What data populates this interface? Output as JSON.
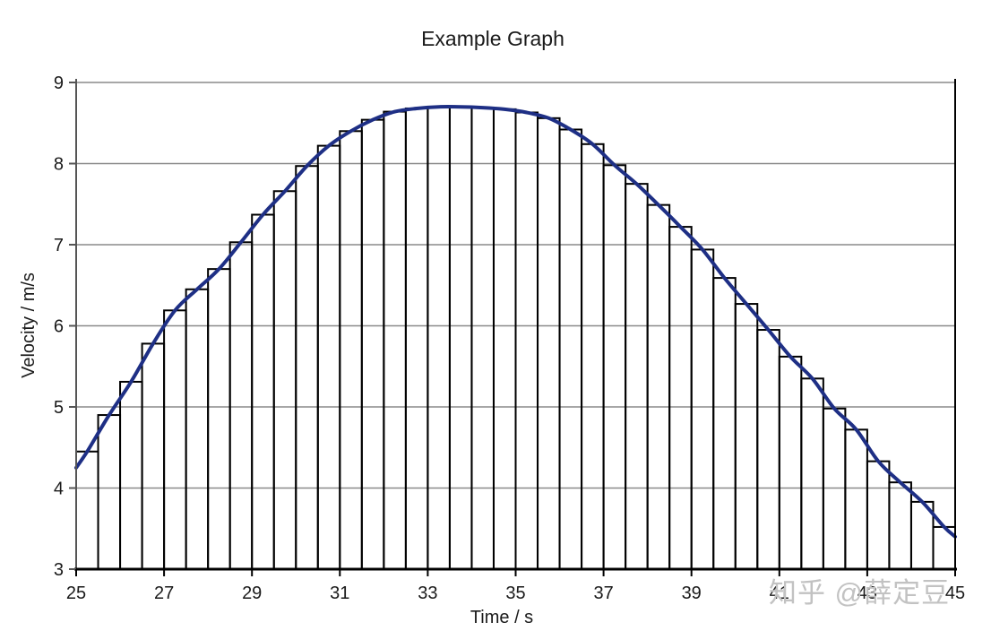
{
  "title": "Example Graph",
  "watermark": "知乎 @薛定豆",
  "chart_data": {
    "type": "bar",
    "subtype": "riemann-midpoint-bars-with-curve",
    "title": "Example Graph",
    "xlabel": "Time / s",
    "ylabel": "Velocity / m/s",
    "xlim": [
      25,
      45
    ],
    "ylim": [
      3,
      9
    ],
    "x_ticks": [
      25,
      27,
      29,
      31,
      33,
      35,
      37,
      39,
      41,
      43,
      45
    ],
    "x_tick_labels": [
      "25",
      "27",
      "29",
      "31",
      "33",
      "35",
      "37",
      "39",
      "41",
      "43",
      "45"
    ],
    "y_ticks": [
      3,
      4,
      5,
      6,
      7,
      8,
      9
    ],
    "y_tick_labels": [
      "3",
      "4",
      "5",
      "6",
      "7",
      "8",
      "9"
    ],
    "grid": "horizontal",
    "legend": "none",
    "bin_start": 25,
    "bin_width": 0.5,
    "bar_fill": "none",
    "values": [
      4.45,
      4.9,
      5.31,
      5.78,
      6.19,
      6.45,
      6.7,
      7.03,
      7.37,
      7.66,
      7.97,
      8.22,
      8.4,
      8.54,
      8.64,
      8.68,
      8.7,
      8.7,
      8.69,
      8.67,
      8.63,
      8.56,
      8.42,
      8.24,
      7.98,
      7.75,
      7.49,
      7.22,
      6.94,
      6.59,
      6.27,
      5.95,
      5.62,
      5.35,
      4.98,
      4.72,
      4.33,
      4.07,
      3.83,
      3.52
    ],
    "series": [
      {
        "name": "velocity-curve",
        "type": "line",
        "points": [
          [
            25,
            4.25
          ],
          [
            25.25,
            4.45
          ],
          [
            25.75,
            4.9
          ],
          [
            26.25,
            5.31
          ],
          [
            26.75,
            5.78
          ],
          [
            27.25,
            6.19
          ],
          [
            27.75,
            6.45
          ],
          [
            28.25,
            6.7
          ],
          [
            28.75,
            7.03
          ],
          [
            29.25,
            7.37
          ],
          [
            29.75,
            7.66
          ],
          [
            30.25,
            7.97
          ],
          [
            30.75,
            8.22
          ],
          [
            31.25,
            8.4
          ],
          [
            31.75,
            8.54
          ],
          [
            32.25,
            8.64
          ],
          [
            32.75,
            8.68
          ],
          [
            33.25,
            8.7
          ],
          [
            33.75,
            8.7
          ],
          [
            34.25,
            8.69
          ],
          [
            34.75,
            8.67
          ],
          [
            35.25,
            8.63
          ],
          [
            35.75,
            8.56
          ],
          [
            36.25,
            8.42
          ],
          [
            36.75,
            8.24
          ],
          [
            37.25,
            7.98
          ],
          [
            37.75,
            7.75
          ],
          [
            38.25,
            7.49
          ],
          [
            38.75,
            7.22
          ],
          [
            39.25,
            6.94
          ],
          [
            39.75,
            6.59
          ],
          [
            40.25,
            6.27
          ],
          [
            40.75,
            5.95
          ],
          [
            41.25,
            5.62
          ],
          [
            41.75,
            5.35
          ],
          [
            42.25,
            4.98
          ],
          [
            42.75,
            4.72
          ],
          [
            43.25,
            4.33
          ],
          [
            43.75,
            4.07
          ],
          [
            44.25,
            3.83
          ],
          [
            44.75,
            3.52
          ],
          [
            45,
            3.4
          ]
        ]
      }
    ],
    "colors": {
      "curve": "#1e2f85",
      "bar_outline": "#000000",
      "grid": "#8a8a8a",
      "axis": "#000000",
      "axis_minor": "#555555",
      "text": "#1a1a1a",
      "watermark": "#c2c2c2",
      "background": "#ffffff"
    }
  }
}
